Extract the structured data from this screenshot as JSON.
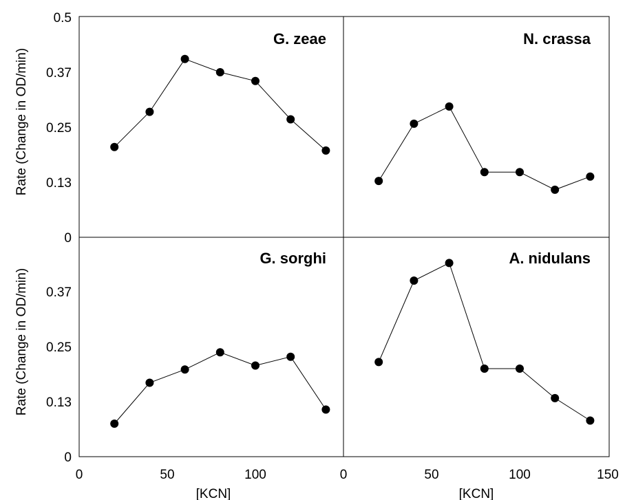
{
  "chart_data": {
    "type": "line",
    "layout": "2x2 panel grid with shared axes",
    "ylabel": "Rate (Change in OD/min)",
    "xlabel": "[KCN]",
    "yticks": [
      "0",
      "0.13",
      "0.25",
      "0.37",
      "0.5"
    ],
    "xticks_left": [
      "0",
      "50",
      "100"
    ],
    "xticks_right": [
      "0",
      "50",
      "100",
      "150"
    ],
    "ylim": [
      0,
      0.5
    ],
    "xlim": [
      0,
      150
    ],
    "grid": false,
    "legend": "none",
    "marker": "filled-circle",
    "panels": [
      {
        "id": "gzeae",
        "title": "G. zeae",
        "row": 0,
        "col": 0,
        "x": [
          20,
          40,
          60,
          80,
          100,
          120,
          140
        ],
        "y": [
          0.205,
          0.285,
          0.405,
          0.375,
          0.355,
          0.268,
          0.197
        ]
      },
      {
        "id": "ncrassa",
        "title": "N. crassa",
        "row": 0,
        "col": 1,
        "x": [
          20,
          40,
          60,
          80,
          100,
          120,
          140
        ],
        "y": [
          0.128,
          0.258,
          0.297,
          0.148,
          0.148,
          0.108,
          0.138
        ]
      },
      {
        "id": "gsorghi",
        "title": "G. sorghi",
        "row": 1,
        "col": 0,
        "x": [
          20,
          40,
          60,
          80,
          100,
          120,
          140
        ],
        "y": [
          0.075,
          0.168,
          0.198,
          0.237,
          0.207,
          0.227,
          0.107
        ]
      },
      {
        "id": "anidulans",
        "title": "A. nidulans",
        "row": 1,
        "col": 1,
        "x": [
          20,
          40,
          60,
          80,
          100,
          120,
          140
        ],
        "y": [
          0.215,
          0.4,
          0.44,
          0.2,
          0.2,
          0.133,
          0.082
        ]
      }
    ]
  }
}
